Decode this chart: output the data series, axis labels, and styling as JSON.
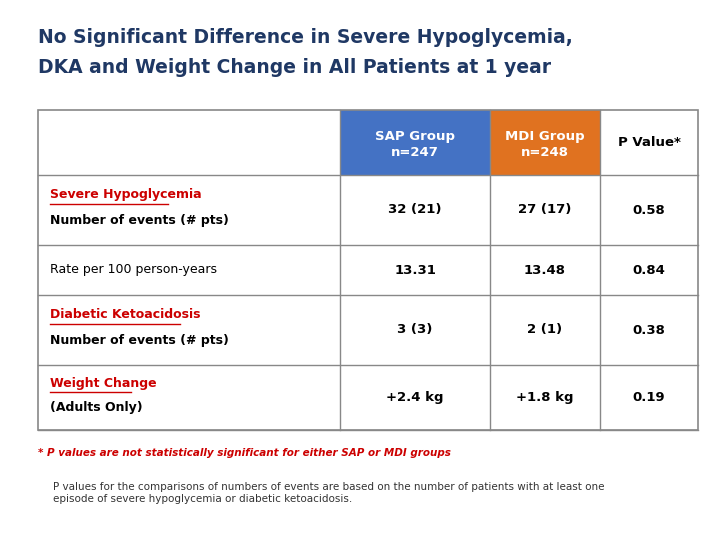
{
  "title_line1": "No Significant Difference in Severe Hypoglycemia,",
  "title_line2": "DKA and Weight Change in All Patients at 1 year",
  "title_color": "#1F3864",
  "title_fontsize": 13.5,
  "header_col1": "SAP Group\nn=247",
  "header_col2": "MDI Group\nn=248",
  "header_col3": "P Value*",
  "sap_header_color": "#4472C4",
  "mdi_header_color": "#E07220",
  "header_text_color": "#FFFFFF",
  "rows": [
    {
      "label_line1": "Severe Hypoglycemia",
      "label_line2": "Number of events (# pts)",
      "label_underline": true,
      "label_bold_line1": true,
      "label_color_line1": "#CC0000",
      "sap": "32 (21)",
      "mdi": "27 (17)",
      "pval": "0.58"
    },
    {
      "label_line1": "Rate per 100 person-years",
      "label_line2": "",
      "label_underline": false,
      "label_bold_line1": false,
      "label_color_line1": "#000000",
      "sap": "13.31",
      "mdi": "13.48",
      "pval": "0.84"
    },
    {
      "label_line1": "Diabetic Ketoacidosis",
      "label_line2": "Number of events (# pts)",
      "label_underline": true,
      "label_bold_line1": true,
      "label_color_line1": "#CC0000",
      "sap": "3 (3)",
      "mdi": "2 (1)",
      "pval": "0.38"
    },
    {
      "label_line1": "Weight Change",
      "label_line2": "(Adults Only)",
      "label_underline": true,
      "label_bold_line1": true,
      "label_color_line1": "#CC0000",
      "sap": "+2.4 kg",
      "mdi": "+1.8 kg",
      "pval": "0.19"
    }
  ],
  "footnote1": "* P values are not statistically significant for either SAP or MDI groups",
  "footnote2": "P values for the comparisons of numbers of events are based on the number of patients with at least one\nepisode of severe hypoglycemia or diabetic ketoacidosis.",
  "footnote1_color": "#CC0000",
  "footnote2_color": "#333333",
  "bg_color": "#FFFFFF",
  "table_line_color": "#888888"
}
